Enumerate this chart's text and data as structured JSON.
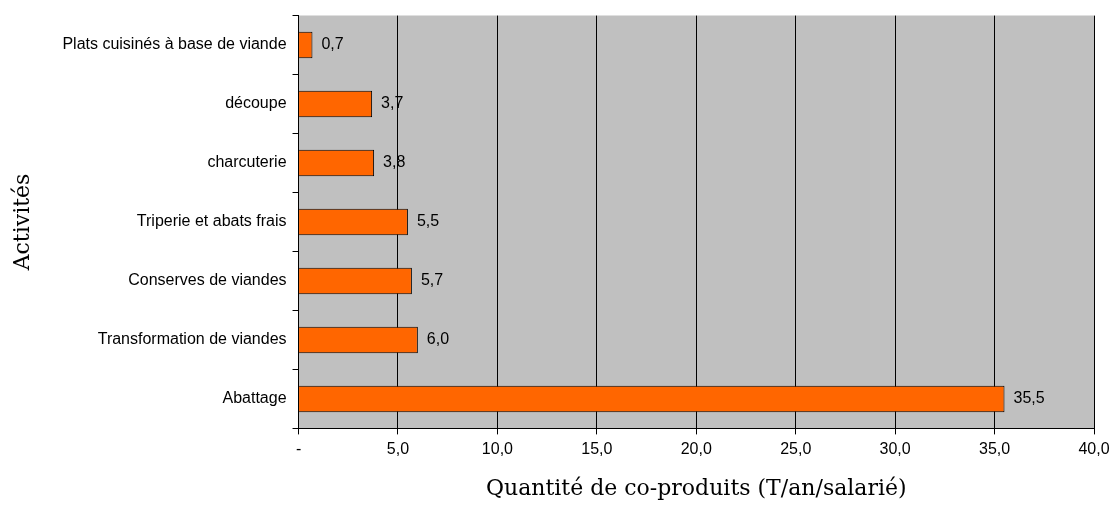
{
  "chart_data": {
    "type": "bar",
    "orientation": "horizontal",
    "xlabel": "Quantité de co-produits (T/an/salarié)",
    "ylabel": "Activités",
    "categories": [
      "Plats cuisinés à base de viande",
      "découpe",
      "charcuterie",
      "Triperie et abats frais",
      "Conserves de viandes",
      "Transformation de viandes",
      "Abattage"
    ],
    "values": [
      0.7,
      3.7,
      3.8,
      5.5,
      5.7,
      6.0,
      35.5
    ],
    "value_labels": [
      "0,7",
      "3,7",
      "3,8",
      "5,5",
      "5,7",
      "6,0",
      "35,5"
    ],
    "color": "#ff6600",
    "xlim": [
      0,
      40
    ],
    "xticks": [
      {
        "value": 0,
        "label": "-"
      },
      {
        "value": 5,
        "label": "5,0"
      },
      {
        "value": 10,
        "label": "10,0"
      },
      {
        "value": 15,
        "label": "15,0"
      },
      {
        "value": 20,
        "label": "20,0"
      },
      {
        "value": 25,
        "label": "25,0"
      },
      {
        "value": 30,
        "label": "30,0"
      },
      {
        "value": 35,
        "label": "35,0"
      },
      {
        "value": 40,
        "label": "40,0"
      }
    ],
    "grid": "x",
    "legend": false
  }
}
